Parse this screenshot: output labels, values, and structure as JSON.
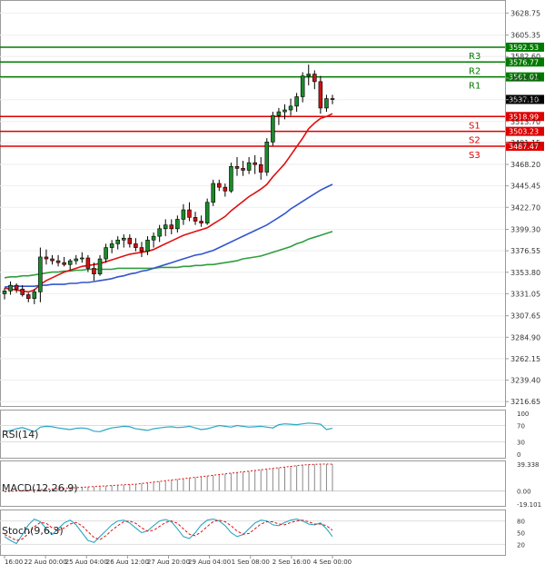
{
  "chart_data": {
    "type": "candlestick",
    "price_axis": {
      "ticks": [
        "3628.75",
        "3605.35",
        "3582.60",
        "3559.70",
        "3536.85",
        "3513.70",
        "3491.15",
        "3468.20",
        "3445.45",
        "3422.70",
        "3399.30",
        "3376.55",
        "3353.80",
        "3331.05",
        "3307.65",
        "3284.90",
        "3262.15",
        "3239.40",
        "3216.65"
      ],
      "range": [
        3212,
        3631
      ]
    },
    "time_axis": {
      "labels": [
        "16:00",
        "22 Aug 00:00",
        "25 Aug 04:00",
        "26 Aug 12:00",
        "27 Aug 20:00",
        "29 Aug 04:00",
        "1 Sep 08:00",
        "2 Sep 16:00",
        "4 Sep 00:00"
      ]
    },
    "candles": [
      [
        3331,
        3337,
        3325,
        3334
      ],
      [
        3334,
        3344,
        3330,
        3340
      ],
      [
        3340,
        3342,
        3332,
        3336
      ],
      [
        3336,
        3340,
        3328,
        3330
      ],
      [
        3330,
        3332,
        3322,
        3326
      ],
      [
        3326,
        3336,
        3320,
        3333
      ],
      [
        3333,
        3380,
        3322,
        3370
      ],
      [
        3370,
        3378,
        3362,
        3368
      ],
      [
        3368,
        3372,
        3362,
        3366
      ],
      [
        3366,
        3372,
        3360,
        3364
      ],
      [
        3364,
        3370,
        3360,
        3362
      ],
      [
        3362,
        3368,
        3356,
        3366
      ],
      [
        3366,
        3372,
        3362,
        3368
      ],
      [
        3368,
        3375,
        3364,
        3369
      ],
      [
        3369,
        3372,
        3354,
        3358
      ],
      [
        3358,
        3364,
        3345,
        3352
      ],
      [
        3352,
        3372,
        3350,
        3368
      ],
      [
        3368,
        3384,
        3364,
        3380
      ],
      [
        3380,
        3388,
        3374,
        3384
      ],
      [
        3384,
        3392,
        3378,
        3388
      ],
      [
        3388,
        3394,
        3380,
        3390
      ],
      [
        3390,
        3394,
        3380,
        3384
      ],
      [
        3384,
        3390,
        3376,
        3380
      ],
      [
        3380,
        3386,
        3370,
        3376
      ],
      [
        3376,
        3392,
        3372,
        3388
      ],
      [
        3388,
        3396,
        3380,
        3392
      ],
      [
        3392,
        3404,
        3386,
        3400
      ],
      [
        3400,
        3410,
        3392,
        3404
      ],
      [
        3404,
        3410,
        3394,
        3400
      ],
      [
        3400,
        3414,
        3396,
        3410
      ],
      [
        3410,
        3426,
        3404,
        3420
      ],
      [
        3420,
        3428,
        3408,
        3412
      ],
      [
        3412,
        3418,
        3404,
        3408
      ],
      [
        3408,
        3414,
        3402,
        3406
      ],
      [
        3406,
        3432,
        3404,
        3428
      ],
      [
        3428,
        3452,
        3424,
        3448
      ],
      [
        3448,
        3452,
        3440,
        3444
      ],
      [
        3444,
        3448,
        3434,
        3440
      ],
      [
        3440,
        3470,
        3438,
        3466
      ],
      [
        3466,
        3476,
        3456,
        3464
      ],
      [
        3464,
        3472,
        3456,
        3462
      ],
      [
        3462,
        3476,
        3458,
        3470
      ],
      [
        3470,
        3478,
        3458,
        3468
      ],
      [
        3468,
        3476,
        3452,
        3460
      ],
      [
        3460,
        3496,
        3456,
        3492
      ],
      [
        3492,
        3524,
        3488,
        3520
      ],
      [
        3520,
        3528,
        3510,
        3524
      ],
      [
        3524,
        3532,
        3516,
        3526
      ],
      [
        3526,
        3538,
        3520,
        3530
      ],
      [
        3530,
        3544,
        3524,
        3540
      ],
      [
        3540,
        3566,
        3534,
        3562
      ],
      [
        3562,
        3574,
        3552,
        3564
      ],
      [
        3564,
        3568,
        3548,
        3556
      ],
      [
        3556,
        3562,
        3522,
        3528
      ],
      [
        3528,
        3542,
        3524,
        3538
      ],
      [
        3538,
        3542,
        3532,
        3537
      ]
    ],
    "ma_fast_red": [
      3337,
      3336,
      3335,
      3334,
      3333,
      3335,
      3341,
      3345,
      3348,
      3351,
      3354,
      3356,
      3358,
      3360,
      3361,
      3362,
      3363,
      3365,
      3367,
      3369,
      3371,
      3373,
      3374,
      3375,
      3376,
      3378,
      3381,
      3384,
      3387,
      3390,
      3393,
      3395,
      3397,
      3399,
      3401,
      3405,
      3409,
      3413,
      3419,
      3424,
      3429,
      3434,
      3438,
      3442,
      3447,
      3455,
      3462,
      3469,
      3478,
      3487,
      3496,
      3506,
      3512,
      3517,
      3519,
      3522
    ],
    "ma_mid_blue": [
      3338,
      3339,
      3339,
      3339,
      3339,
      3339,
      3340,
      3340,
      3341,
      3341,
      3341,
      3342,
      3342,
      3343,
      3343,
      3344,
      3345,
      3346,
      3347,
      3349,
      3350,
      3352,
      3353,
      3355,
      3356,
      3358,
      3360,
      3362,
      3364,
      3366,
      3368,
      3370,
      3372,
      3373,
      3375,
      3377,
      3380,
      3383,
      3386,
      3389,
      3392,
      3395,
      3398,
      3401,
      3404,
      3408,
      3412,
      3416,
      3421,
      3425,
      3429,
      3433,
      3437,
      3441,
      3444,
      3447
    ],
    "ma_slow_green": [
      3348,
      3349,
      3349,
      3350,
      3350,
      3351,
      3352,
      3353,
      3354,
      3354,
      3355,
      3355,
      3356,
      3356,
      3357,
      3357,
      3357,
      3357,
      3357,
      3358,
      3358,
      3358,
      3358,
      3358,
      3358,
      3358,
      3359,
      3359,
      3359,
      3359,
      3360,
      3360,
      3361,
      3361,
      3362,
      3362,
      3363,
      3364,
      3365,
      3366,
      3368,
      3369,
      3370,
      3371,
      3373,
      3375,
      3377,
      3379,
      3381,
      3384,
      3386,
      3389,
      3391,
      3393,
      3395,
      3397
    ],
    "levels": [
      {
        "name": "R3",
        "value": "3592.53",
        "color": "#007a00"
      },
      {
        "name": "R2",
        "value": "3576.77",
        "color": "#007a00"
      },
      {
        "name": "R1",
        "value": "3561.01",
        "color": "#007a00"
      },
      {
        "name": "S1",
        "value": "3518.99",
        "color": "#dd0000"
      },
      {
        "name": "S2",
        "value": "3503.23",
        "color": "#dd0000"
      },
      {
        "name": "S3",
        "value": "3487.47",
        "color": "#dd0000"
      }
    ],
    "current_price": "3537.10",
    "rsi": {
      "title": "RSI(14)",
      "ticks": [
        "100",
        "70",
        "30",
        "0"
      ],
      "values": [
        55,
        58,
        62,
        65,
        60,
        55,
        66,
        68,
        67,
        64,
        62,
        60,
        63,
        64,
        62,
        56,
        55,
        60,
        64,
        66,
        68,
        67,
        62,
        60,
        58,
        62,
        64,
        66,
        67,
        65,
        66,
        68,
        64,
        60,
        62,
        66,
        70,
        68,
        66,
        70,
        68,
        66,
        67,
        68,
        66,
        64,
        72,
        74,
        73,
        72,
        74,
        76,
        75,
        73,
        60,
        63
      ]
    },
    "macd": {
      "title": "MACD(12,26,9)",
      "ticks": [
        "39.338",
        "0.00",
        "-19.101"
      ],
      "values": [
        -1,
        -0.5,
        0,
        0.5,
        1,
        1.5,
        2,
        2.5,
        3,
        3.5,
        4,
        4.5,
        5,
        5.5,
        6,
        6.5,
        7,
        7.5,
        8,
        8.5,
        9,
        9.5,
        10,
        11,
        12,
        13,
        14,
        15,
        16,
        17,
        18,
        19,
        20,
        21,
        22,
        23,
        24,
        25,
        26,
        27,
        28,
        29,
        30,
        31,
        32,
        33,
        34,
        35,
        36,
        37,
        38,
        38.5,
        39,
        39.3,
        39.3,
        39.2
      ]
    },
    "stoch": {
      "title": "Stoch(9,6,3)",
      "ticks": [
        "80",
        "50",
        "20"
      ],
      "k": [
        40,
        30,
        22,
        45,
        70,
        85,
        78,
        60,
        45,
        60,
        75,
        82,
        70,
        50,
        30,
        25,
        40,
        55,
        70,
        80,
        82,
        75,
        62,
        50,
        55,
        68,
        80,
        84,
        78,
        60,
        40,
        35,
        50,
        70,
        82,
        85,
        80,
        68,
        50,
        40,
        45,
        60,
        75,
        82,
        80,
        70,
        68,
        76,
        82,
        85,
        80,
        72,
        70,
        75,
        60,
        40
      ],
      "d": [
        45,
        38,
        30,
        34,
        48,
        65,
        76,
        74,
        62,
        56,
        62,
        72,
        76,
        68,
        52,
        38,
        32,
        42,
        56,
        68,
        78,
        80,
        74,
        62,
        54,
        56,
        66,
        76,
        80,
        74,
        60,
        46,
        42,
        52,
        66,
        78,
        82,
        78,
        68,
        54,
        46,
        48,
        60,
        72,
        78,
        78,
        72,
        70,
        76,
        80,
        82,
        78,
        72,
        72,
        68,
        56
      ]
    }
  }
}
